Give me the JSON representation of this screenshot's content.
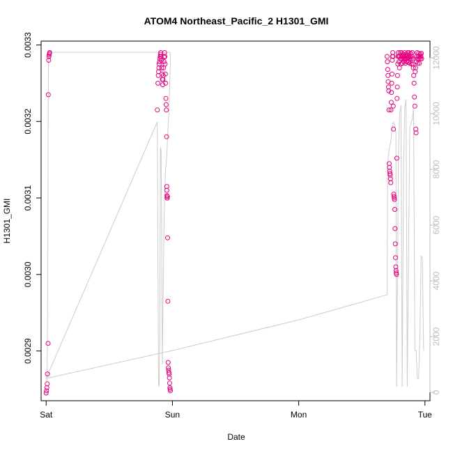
{
  "chart_data": {
    "type": "scatter",
    "title": "ATOM4 Northeast_Pacific_2 H1301_GMI",
    "xlabel": "Date",
    "ylabel": "H1301_GMI",
    "x_ticks": [
      {
        "label": "Sat",
        "day": 0
      },
      {
        "label": "Sun",
        "day": 1
      },
      {
        "label": "Mon",
        "day": 2
      },
      {
        "label": "Tue",
        "day": 3
      }
    ],
    "xlim": [
      -0.04,
      3.04
    ],
    "ylim": [
      0.002835,
      0.003305
    ],
    "y_ticks": [
      "0.0029",
      "0.0030",
      "0.0031",
      "0.0032",
      "0.0033"
    ],
    "y2_ticks": [
      "0",
      "2000",
      "4000",
      "6000",
      "8000",
      "10000",
      "12000"
    ],
    "y2lim": [
      -300,
      12600
    ],
    "colors": {
      "points": "#e6007e",
      "altitude_line": "#cccccc",
      "right_axis": "#bdbdbd",
      "axis": "#000000"
    },
    "series": [
      {
        "marker": "circle",
        "points": [
          [
            0.0,
            0.002845
          ],
          [
            0.003,
            0.002848
          ],
          [
            0.005,
            0.002852
          ],
          [
            0.008,
            0.002857
          ],
          [
            0.01,
            0.00287
          ],
          [
            0.015,
            0.00291
          ],
          [
            0.017,
            0.003235
          ],
          [
            0.02,
            0.00328
          ],
          [
            0.022,
            0.003285
          ],
          [
            0.024,
            0.003287
          ],
          [
            0.026,
            0.003289
          ],
          [
            0.028,
            0.00329
          ],
          [
            0.88,
            0.003215
          ],
          [
            0.885,
            0.00325
          ],
          [
            0.888,
            0.00326
          ],
          [
            0.89,
            0.003265
          ],
          [
            0.893,
            0.00327
          ],
          [
            0.895,
            0.003275
          ],
          [
            0.898,
            0.003278
          ],
          [
            0.9,
            0.003282
          ],
          [
            0.903,
            0.003285
          ],
          [
            0.905,
            0.003288
          ],
          [
            0.908,
            0.00329
          ],
          [
            0.91,
            0.003285
          ],
          [
            0.913,
            0.00328
          ],
          [
            0.915,
            0.00327
          ],
          [
            0.918,
            0.003262
          ],
          [
            0.92,
            0.003255
          ],
          [
            0.923,
            0.003248
          ],
          [
            0.925,
            0.003255
          ],
          [
            0.928,
            0.00326
          ],
          [
            0.93,
            0.00327
          ],
          [
            0.933,
            0.003278
          ],
          [
            0.935,
            0.003284
          ],
          [
            0.938,
            0.00329
          ],
          [
            0.94,
            0.003285
          ],
          [
            0.942,
            0.003275
          ],
          [
            0.944,
            0.003262
          ],
          [
            0.946,
            0.00325
          ],
          [
            0.948,
            0.00323
          ],
          [
            0.95,
            0.003222
          ],
          [
            0.952,
            0.003215
          ],
          [
            0.954,
            0.00318
          ],
          [
            0.955,
            0.003115
          ],
          [
            0.956,
            0.00311
          ],
          [
            0.957,
            0.003103
          ],
          [
            0.958,
            0.0031
          ],
          [
            0.959,
            0.0031
          ],
          [
            0.96,
            0.003102
          ],
          [
            0.962,
            0.003048
          ],
          [
            0.964,
            0.002965
          ],
          [
            0.966,
            0.002885
          ],
          [
            0.968,
            0.002878
          ],
          [
            0.97,
            0.002875
          ],
          [
            0.972,
            0.002872
          ],
          [
            0.974,
            0.00287
          ],
          [
            0.976,
            0.002865
          ],
          [
            0.978,
            0.002858
          ],
          [
            0.98,
            0.002852
          ],
          [
            0.982,
            0.00285
          ],
          [
            0.984,
            0.002848
          ],
          [
            2.7,
            0.003285
          ],
          [
            2.702,
            0.003278
          ],
          [
            2.705,
            0.003268
          ],
          [
            2.707,
            0.00326
          ],
          [
            2.709,
            0.003252
          ],
          [
            2.711,
            0.003245
          ],
          [
            2.713,
            0.00324
          ],
          [
            2.715,
            0.003215
          ],
          [
            2.717,
            0.003145
          ],
          [
            2.719,
            0.00314
          ],
          [
            2.721,
            0.003135
          ],
          [
            2.723,
            0.003132
          ],
          [
            2.725,
            0.00313
          ],
          [
            2.727,
            0.003125
          ],
          [
            2.729,
            0.00312
          ],
          [
            2.731,
            0.003215
          ],
          [
            2.733,
            0.003225
          ],
          [
            2.735,
            0.003238
          ],
          [
            2.737,
            0.00325
          ],
          [
            2.739,
            0.003262
          ],
          [
            2.741,
            0.00328
          ],
          [
            2.743,
            0.003285
          ],
          [
            2.745,
            0.00329
          ],
          [
            2.747,
            0.003285
          ],
          [
            2.749,
            0.00322
          ],
          [
            2.751,
            0.00319
          ],
          [
            2.753,
            0.003105
          ],
          [
            2.755,
            0.003102
          ],
          [
            2.757,
            0.0031
          ],
          [
            2.759,
            0.003098
          ],
          [
            2.761,
            0.003085
          ],
          [
            2.763,
            0.00306
          ],
          [
            2.765,
            0.00304
          ],
          [
            2.767,
            0.003022
          ],
          [
            2.769,
            0.00301
          ],
          [
            2.771,
            0.003005
          ],
          [
            2.773,
            0.003002
          ],
          [
            2.775,
            0.003
          ],
          [
            2.777,
            0.003152
          ],
          [
            2.779,
            0.00323
          ],
          [
            2.781,
            0.003245
          ],
          [
            2.783,
            0.00326
          ],
          [
            2.785,
            0.003275
          ],
          [
            2.787,
            0.003285
          ],
          [
            2.789,
            0.00329
          ],
          [
            2.792,
            0.003285
          ],
          [
            2.795,
            0.003278
          ],
          [
            2.798,
            0.00327
          ],
          [
            2.8,
            0.003285
          ],
          [
            2.803,
            0.00329
          ],
          [
            2.806,
            0.003282
          ],
          [
            2.809,
            0.003275
          ],
          [
            2.812,
            0.003285
          ],
          [
            2.815,
            0.00329
          ],
          [
            2.818,
            0.003282
          ],
          [
            2.821,
            0.003276
          ],
          [
            2.824,
            0.003285
          ],
          [
            2.827,
            0.003288
          ],
          [
            2.83,
            0.003282
          ],
          [
            2.833,
            0.003278
          ],
          [
            2.836,
            0.003285
          ],
          [
            2.839,
            0.00329
          ],
          [
            2.842,
            0.003282
          ],
          [
            2.845,
            0.003276
          ],
          [
            2.848,
            0.003285
          ],
          [
            2.851,
            0.003288
          ],
          [
            2.854,
            0.003282
          ],
          [
            2.857,
            0.003278
          ],
          [
            2.86,
            0.003285
          ],
          [
            2.863,
            0.00329
          ],
          [
            2.866,
            0.003283
          ],
          [
            2.869,
            0.003277
          ],
          [
            2.872,
            0.003285
          ],
          [
            2.875,
            0.00329
          ],
          [
            2.878,
            0.003282
          ],
          [
            2.881,
            0.003276
          ],
          [
            2.884,
            0.003285
          ],
          [
            2.887,
            0.003289
          ],
          [
            2.89,
            0.003282
          ],
          [
            2.893,
            0.003275
          ],
          [
            2.896,
            0.003285
          ],
          [
            2.899,
            0.00329
          ],
          [
            2.902,
            0.003282
          ],
          [
            2.905,
            0.003275
          ],
          [
            2.908,
            0.00327
          ],
          [
            2.911,
            0.00326
          ],
          [
            2.914,
            0.00325
          ],
          [
            2.917,
            0.003232
          ],
          [
            2.92,
            0.00322
          ],
          [
            2.923,
            0.003265
          ],
          [
            2.926,
            0.00327
          ],
          [
            2.928,
            0.00319
          ],
          [
            2.93,
            0.003185
          ],
          [
            2.932,
            0.003278
          ],
          [
            2.935,
            0.003285
          ],
          [
            2.938,
            0.00329
          ],
          [
            2.941,
            0.003282
          ],
          [
            2.944,
            0.003276
          ],
          [
            2.947,
            0.003285
          ],
          [
            2.95,
            0.003289
          ],
          [
            2.953,
            0.003282
          ],
          [
            2.956,
            0.003276
          ],
          [
            2.959,
            0.003285
          ],
          [
            2.962,
            0.003288
          ],
          [
            2.965,
            0.003282
          ],
          [
            2.968,
            0.003285
          ],
          [
            2.971,
            0.003289
          ],
          [
            2.974,
            0.003282
          ]
        ]
      }
    ],
    "altitude_line": [
      [
        0.0,
        400
      ],
      [
        0.005,
        400
      ],
      [
        0.008,
        1000
      ],
      [
        0.01,
        2200
      ],
      [
        0.012,
        3500
      ],
      [
        0.014,
        6000
      ],
      [
        0.016,
        9500
      ],
      [
        0.018,
        11800
      ],
      [
        0.02,
        12200
      ],
      [
        0.5,
        12200
      ],
      [
        0.98,
        12200
      ],
      [
        0.985,
        12000
      ],
      [
        0.978,
        11000
      ],
      [
        0.972,
        10000
      ],
      [
        0.965,
        9500
      ],
      [
        0.96,
        9000
      ],
      [
        0.955,
        8500
      ],
      [
        0.95,
        8200
      ],
      [
        0.945,
        8000
      ],
      [
        0.935,
        6500
      ],
      [
        0.92,
        1000
      ],
      [
        0.915,
        6000
      ],
      [
        0.91,
        8700
      ],
      [
        0.905,
        8800
      ],
      [
        0.9,
        2000
      ],
      [
        0.895,
        200
      ],
      [
        0.89,
        300
      ],
      [
        0.885,
        5000
      ],
      [
        0.88,
        9700
      ],
      [
        0.0,
        500
      ],
      [
        1.0,
        1500
      ],
      [
        2.0,
        2600
      ],
      [
        2.7,
        3500
      ],
      [
        2.705,
        8000
      ],
      [
        2.71,
        8500
      ],
      [
        2.72,
        8800
      ],
      [
        2.73,
        9000
      ],
      [
        2.74,
        9500
      ],
      [
        2.75,
        9700
      ],
      [
        2.76,
        9600
      ],
      [
        2.77,
        9300
      ],
      [
        2.775,
        200
      ],
      [
        2.78,
        2500
      ],
      [
        2.79,
        8500
      ],
      [
        2.8,
        10000
      ],
      [
        2.81,
        10300
      ],
      [
        2.82,
        200
      ],
      [
        2.83,
        8000
      ],
      [
        2.84,
        10200
      ],
      [
        2.85,
        10500
      ],
      [
        2.86,
        200
      ],
      [
        2.87,
        5000
      ],
      [
        2.88,
        9500
      ],
      [
        2.9,
        9800
      ],
      [
        2.91,
        10200
      ],
      [
        2.92,
        1500
      ],
      [
        2.93,
        1500
      ],
      [
        2.94,
        500
      ],
      [
        2.95,
        500
      ],
      [
        2.96,
        2000
      ],
      [
        2.97,
        4900
      ],
      [
        2.98,
        4800
      ],
      [
        2.985,
        3000
      ],
      [
        2.99,
        1500
      ]
    ]
  }
}
